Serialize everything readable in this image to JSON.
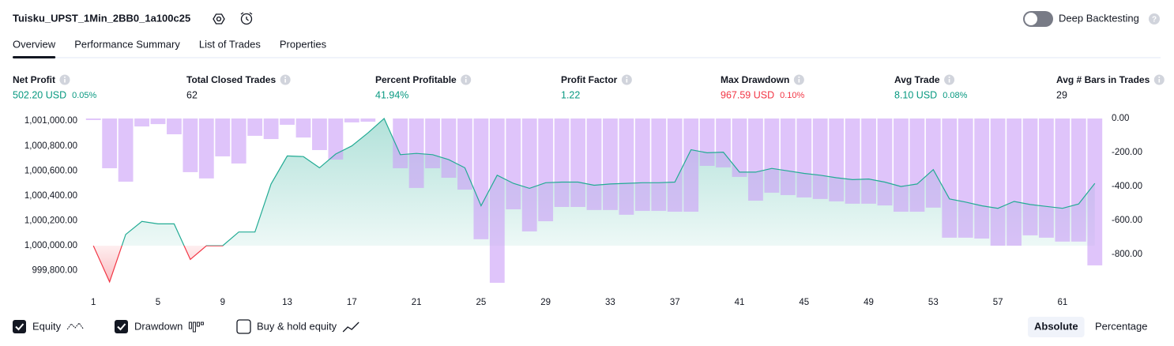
{
  "header": {
    "title": "Tuisku_UPST_1Min_2BB0_1a100c25",
    "deep_backtesting": {
      "label": "Deep Backtesting",
      "on": false
    }
  },
  "tabs": {
    "items": [
      "Overview",
      "Performance Summary",
      "List of Trades",
      "Properties"
    ],
    "active": "Overview"
  },
  "metrics": [
    {
      "label": "Net Profit",
      "value": "502.20 USD",
      "percent": "0.05%",
      "color": "#089981"
    },
    {
      "label": "Total Closed Trades",
      "value": "62",
      "color": "#131722"
    },
    {
      "label": "Percent Profitable",
      "value": "41.94%",
      "color": "#089981"
    },
    {
      "label": "Profit Factor",
      "value": "1.22",
      "color": "#089981"
    },
    {
      "label": "Max Drawdown",
      "value": "967.59 USD",
      "percent": "0.10%",
      "color": "#f23645"
    },
    {
      "label": "Avg Trade",
      "value": "8.10 USD",
      "percent": "0.08%",
      "color": "#089981"
    },
    {
      "label": "Avg # Bars in Trades",
      "value": "29",
      "color": "#131722"
    }
  ],
  "chart_data": {
    "type": "line",
    "x": [
      1,
      2,
      3,
      4,
      5,
      6,
      7,
      8,
      9,
      10,
      11,
      12,
      13,
      14,
      15,
      16,
      17,
      18,
      19,
      20,
      21,
      22,
      23,
      24,
      25,
      26,
      27,
      28,
      29,
      30,
      31,
      32,
      33,
      34,
      35,
      36,
      37,
      38,
      39,
      40,
      41,
      42,
      43,
      44,
      45,
      46,
      47,
      48,
      49,
      50,
      51,
      52,
      53,
      54,
      55,
      56,
      57,
      58,
      59,
      60,
      61,
      62,
      63
    ],
    "xlim": [
      0.5,
      63.5
    ],
    "xticks": [
      1,
      5,
      9,
      13,
      17,
      21,
      25,
      29,
      33,
      37,
      41,
      45,
      49,
      53,
      57,
      61
    ],
    "ylim": [
      999690,
      1001020
    ],
    "yticks": [
      {
        "value": 999800,
        "label": "999,800.00"
      },
      {
        "value": 1000000,
        "label": "1,000,000.00"
      },
      {
        "value": 1000200,
        "label": "1,000,200.00"
      },
      {
        "value": 1000400,
        "label": "1,000,400.00"
      },
      {
        "value": 1000600,
        "label": "1,000,600.00"
      },
      {
        "value": 1000800,
        "label": "1,000,800.00"
      },
      {
        "value": 1001000,
        "label": "1,001,000.00"
      }
    ],
    "y2lim": [
      -977,
      0
    ],
    "y2ticks": [
      {
        "value": 0,
        "label": "0.00"
      },
      {
        "value": -200,
        "label": "-200.00"
      },
      {
        "value": -400,
        "label": "-400.00"
      },
      {
        "value": -600,
        "label": "-600.00"
      },
      {
        "value": -800,
        "label": "-800.00"
      }
    ],
    "series": [
      {
        "name": "Equity",
        "checked": true,
        "color": "#22ab94",
        "negative_color": "#f23645",
        "values": [
          1000000,
          999710,
          1000090,
          1000195,
          1000175,
          1000175,
          999890,
          1000000,
          1000000,
          1000110,
          1000110,
          1000495,
          1000720,
          1000715,
          1000625,
          1000735,
          1000800,
          1000905,
          1001020,
          1000730,
          1000740,
          1000730,
          1000690,
          1000625,
          1000320,
          1000565,
          1000500,
          1000460,
          1000505,
          1000510,
          1000510,
          1000485,
          1000495,
          1000500,
          1000505,
          1000505,
          1000510,
          1000770,
          1000745,
          1000750,
          1000590,
          1000590,
          1000620,
          1000600,
          1000580,
          1000565,
          1000545,
          1000530,
          1000535,
          1000510,
          1000475,
          1000495,
          1000610,
          1000375,
          1000350,
          1000320,
          1000300,
          1000355,
          1000330,
          1000315,
          1000300,
          1000335,
          1000500
        ]
      },
      {
        "name": "Drawdown",
        "checked": true,
        "color": "#c99cf7",
        "axis": "y2",
        "values": [
          -9,
          -293,
          -372,
          -47,
          -33,
          -93,
          -316,
          -353,
          -223,
          -265,
          -102,
          -121,
          -37,
          -112,
          -186,
          -242,
          -23,
          -19,
          0,
          -293,
          -409,
          -293,
          -349,
          -419,
          -711,
          -967.59,
          -535,
          -665,
          -605,
          -521,
          -521,
          -539,
          -539,
          -567,
          -544,
          -544,
          -549,
          -549,
          -279,
          -288,
          -344,
          -484,
          -437,
          -451,
          -465,
          -474,
          -488,
          -502,
          -502,
          -512,
          -549,
          -549,
          -525,
          -702,
          -702,
          -707,
          -749,
          -749,
          -688,
          -702,
          -725,
          -725,
          -865
        ]
      }
    ],
    "buy_hold": {
      "label": "Buy & hold equity",
      "checked": false
    },
    "scale_modes": [
      "Absolute",
      "Percentage"
    ],
    "scale_mode": "Absolute"
  }
}
